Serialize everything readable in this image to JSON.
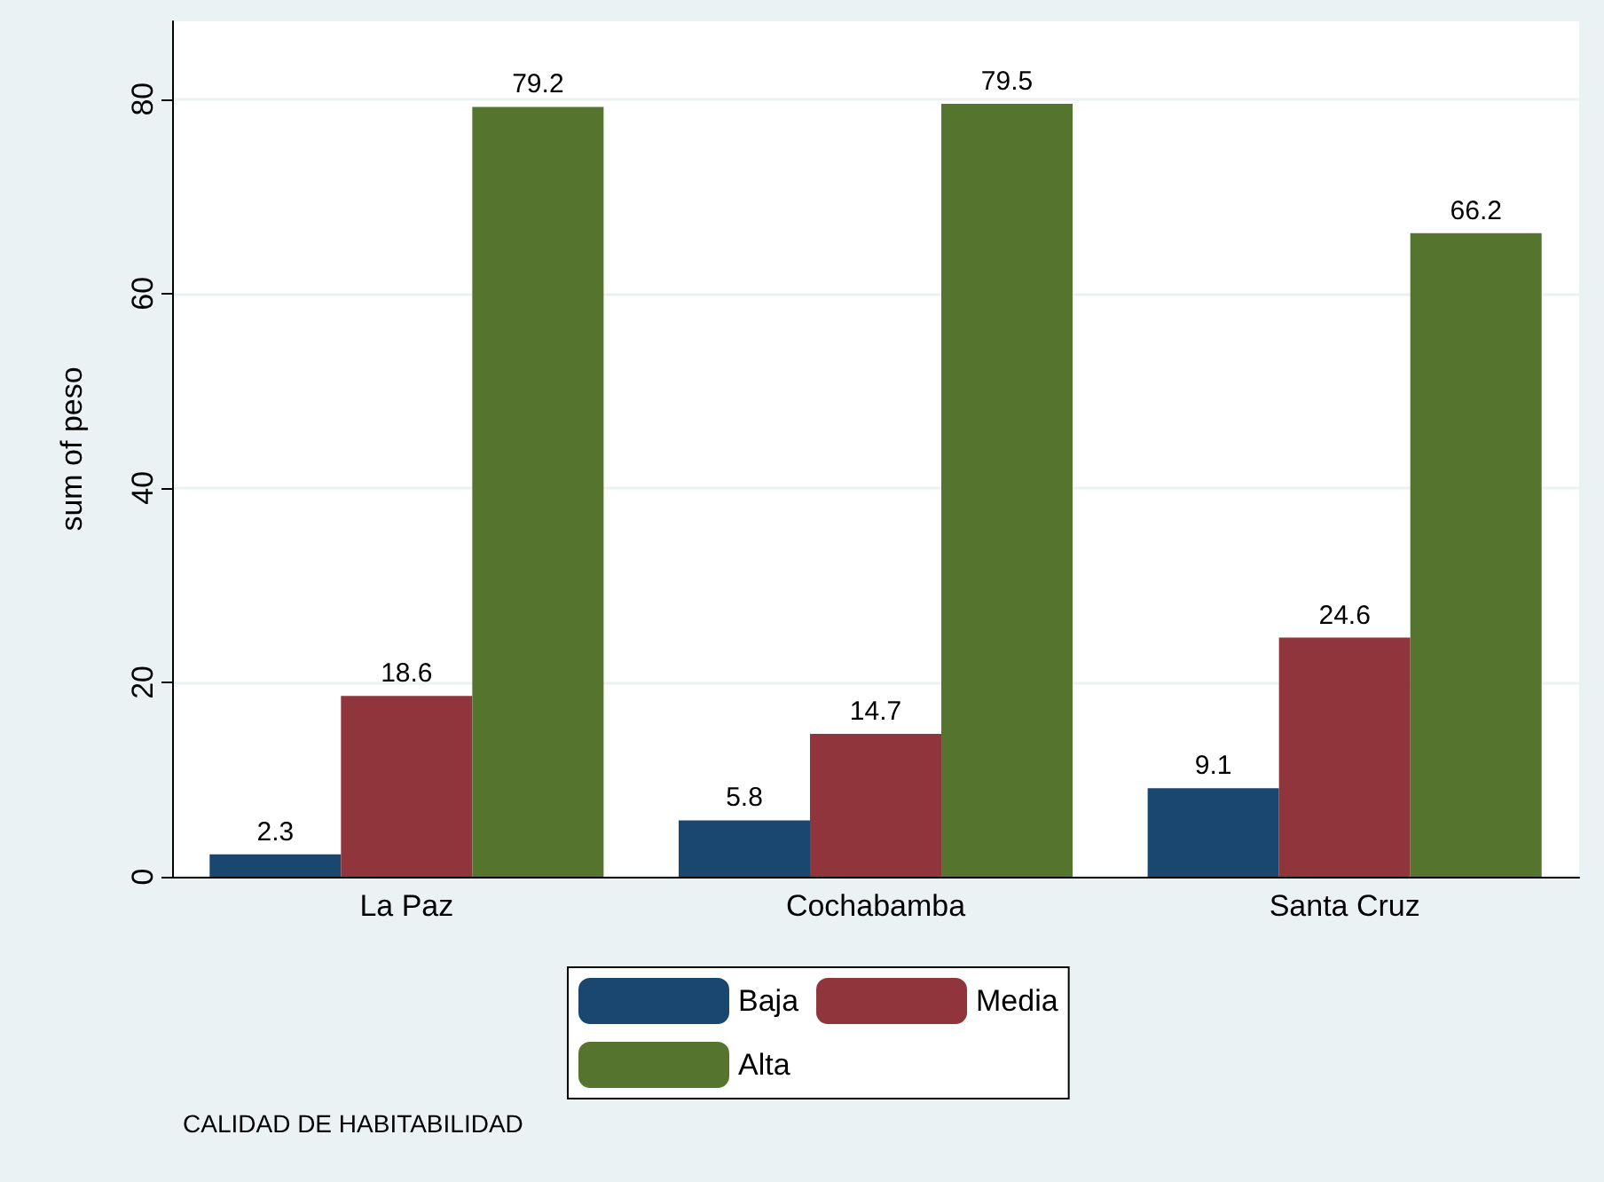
{
  "chart_data": {
    "type": "bar",
    "ylabel": "sum of peso",
    "categories": [
      "La Paz",
      "Cochabamba",
      "Santa Cruz"
    ],
    "series": [
      {
        "name": "Baja",
        "color": "#1a476f",
        "values": [
          2.3,
          5.8,
          9.1
        ]
      },
      {
        "name": "Media",
        "color": "#90353b",
        "values": [
          18.6,
          14.7,
          24.6
        ]
      },
      {
        "name": "Alta",
        "color": "#55752f",
        "values": [
          79.2,
          79.5,
          66.2
        ]
      }
    ],
    "ylim": [
      0,
      88
    ],
    "yticks": [
      0,
      20,
      40,
      60,
      80
    ],
    "grid": "y",
    "legend": "bottom",
    "data_labels": true,
    "annotations": [
      "CALIDAD DE HABITABILIDAD"
    ]
  }
}
